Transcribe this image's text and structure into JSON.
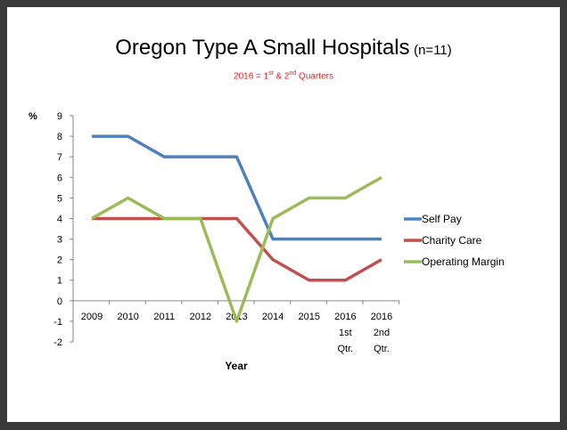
{
  "chart_data": {
    "type": "line",
    "title": "Oregon Type A Small Hospitals",
    "title_suffix": "(n=11)",
    "subtitle": {
      "pre1": "2016 = 1",
      "sup1": "st",
      "mid": " & 2",
      "sup2": "nd",
      "post": " Quarters"
    },
    "xlabel": "Year",
    "ylabel": "%",
    "ylim": [
      -2,
      9
    ],
    "yticks": [
      -2,
      -1,
      0,
      1,
      2,
      3,
      4,
      5,
      6,
      7,
      8,
      9
    ],
    "categories": [
      [
        "2009"
      ],
      [
        "2010"
      ],
      [
        "2011"
      ],
      [
        "2012"
      ],
      [
        "2013"
      ],
      [
        "2014"
      ],
      [
        "2015"
      ],
      [
        "2016",
        "1st",
        "Qtr."
      ],
      [
        "2016",
        "2nd",
        "Qtr."
      ]
    ],
    "series": [
      {
        "name": "Self Pay",
        "color": "#4f81bd",
        "values": [
          8,
          8,
          7,
          7,
          7,
          3,
          3,
          3,
          3
        ]
      },
      {
        "name": "Charity Care",
        "color": "#c0504d",
        "values": [
          4,
          4,
          4,
          4,
          4,
          2,
          1,
          1,
          2
        ]
      },
      {
        "name": "Operating Margin",
        "color": "#9bbb59",
        "values": [
          4,
          5,
          4,
          4,
          -1,
          4,
          5,
          5,
          6
        ]
      }
    ],
    "grid": false,
    "legend_position": "right"
  }
}
